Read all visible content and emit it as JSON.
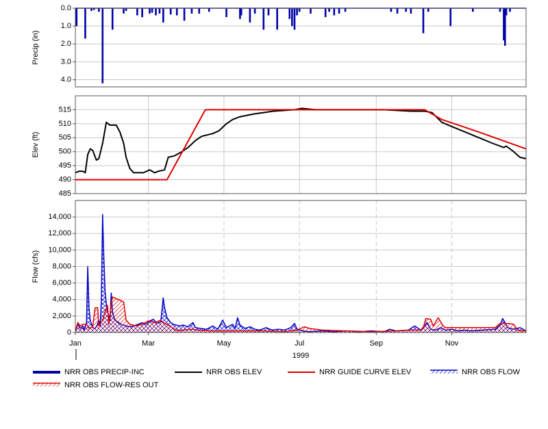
{
  "chart_data": [
    {
      "type": "bar",
      "ylabel": "Precip (in)",
      "xlim": [
        1,
        365
      ],
      "ylim": [
        4.4,
        0
      ],
      "yticks": [
        {
          "value": 0,
          "label": "0.0"
        },
        {
          "value": 1,
          "label": "1.0"
        },
        {
          "value": 2,
          "label": "2.0"
        },
        {
          "value": 3,
          "label": "3.0"
        },
        {
          "value": 4,
          "label": "4.0"
        }
      ],
      "grid": true,
      "x": [
        2,
        9,
        14,
        16,
        20,
        23,
        31,
        40,
        42,
        51,
        55,
        61,
        63,
        66,
        69,
        72,
        78,
        83,
        89,
        95,
        101,
        109,
        123,
        134,
        135,
        142,
        146,
        153,
        157,
        164,
        174,
        176,
        178,
        180,
        182,
        191,
        203,
        206,
        210,
        214,
        219,
        256,
        261,
        268,
        272,
        282,
        286,
        304,
        322,
        344,
        347,
        348,
        349,
        352
      ],
      "series": [
        {
          "name": "NRR OBS PRECIP-INC",
          "color": "#0000a8",
          "values": [
            1.0,
            1.7,
            0.15,
            0.1,
            0.2,
            4.2,
            1.2,
            0.3,
            0.15,
            0.4,
            0.5,
            0.3,
            0.25,
            0.4,
            0.3,
            0.8,
            0.35,
            0.4,
            0.7,
            0.3,
            0.3,
            0.2,
            0.5,
            0.6,
            0.4,
            0.8,
            0.3,
            1.2,
            0.4,
            1.2,
            0.6,
            1.0,
            1.2,
            0.4,
            0.2,
            0.3,
            0.5,
            0.2,
            0.4,
            0.3,
            0.2,
            0.2,
            0.3,
            0.2,
            0.3,
            1.4,
            0.2,
            1.0,
            0.2,
            0.2,
            1.8,
            2.1,
            0.4,
            0.2
          ]
        }
      ]
    },
    {
      "type": "line",
      "ylabel": "Elev (ft)",
      "xlim": [
        1,
        365
      ],
      "ylim": [
        485,
        520
      ],
      "yticks": [
        485,
        490,
        495,
        500,
        505,
        510,
        515
      ],
      "grid": true,
      "series": [
        {
          "name": "NRR OBS ELEV",
          "color": "#000000",
          "x": [
            1,
            4,
            7,
            9,
            11,
            13,
            15,
            18,
            20,
            23,
            26,
            29,
            31,
            34,
            37,
            40,
            42,
            45,
            48,
            51,
            56,
            61,
            65,
            68,
            73,
            76,
            81,
            87,
            92,
            98,
            103,
            112,
            117,
            123,
            128,
            134,
            145,
            161,
            178,
            184,
            195,
            217,
            250,
            272,
            283,
            289,
            297,
            305,
            316,
            327,
            338,
            347,
            349,
            355,
            360,
            365
          ],
          "values": [
            492.5,
            493,
            493,
            492.5,
            499,
            501,
            500.5,
            497,
            497.5,
            503,
            510.5,
            509.5,
            509.5,
            509.5,
            507,
            503,
            498,
            494,
            492.5,
            492.5,
            492.5,
            493.5,
            492.5,
            493,
            493.5,
            498,
            498.5,
            500,
            501.5,
            504,
            505.5,
            506.5,
            507.5,
            510,
            511.5,
            512.5,
            513.5,
            514.5,
            515,
            515.5,
            515,
            515,
            515,
            514.5,
            514.5,
            514,
            510.5,
            509,
            507,
            505,
            503,
            501.5,
            502,
            500,
            498,
            497.5
          ]
        },
        {
          "name": "NRR GUIDE CURVE ELEV",
          "color": "#e00000",
          "x": [
            1,
            75,
            106,
            283,
            297,
            327,
            365
          ],
          "values": [
            490,
            490,
            515,
            515,
            511.5,
            507,
            501
          ]
        }
      ]
    },
    {
      "type": "area",
      "ylabel": "Flow (cfs)",
      "xlabel": "1999",
      "xlim": [
        1,
        365
      ],
      "ylim": [
        0,
        16000
      ],
      "yticks": [
        0,
        {
          "value": 2000,
          "label": "2,000"
        },
        {
          "value": 4000,
          "label": "4,000"
        },
        {
          "value": 6000,
          "label": "6,000"
        },
        {
          "value": 8000,
          "label": "8,000"
        },
        {
          "value": 10000,
          "label": "10,000"
        },
        {
          "value": 12000,
          "label": "12,000"
        },
        {
          "value": 14000,
          "label": "14,000"
        }
      ],
      "xticks": [
        {
          "value": 1,
          "label": "Jan"
        },
        {
          "value": 60,
          "label": "Mar"
        },
        {
          "value": 121,
          "label": "May"
        },
        {
          "value": 182,
          "label": "Jul"
        },
        {
          "value": 244,
          "label": "Sep"
        },
        {
          "value": 305,
          "label": "Nov"
        }
      ],
      "grid": true,
      "series": [
        {
          "name": "NRR OBS FLOW",
          "color": "#0000c8",
          "x": [
            1,
            3,
            5,
            7,
            8,
            10,
            11,
            12,
            13,
            15,
            17,
            19,
            20,
            21,
            22,
            23,
            24,
            25,
            26,
            27,
            29,
            30,
            31,
            33,
            35,
            38,
            42,
            46,
            50,
            55,
            58,
            61,
            64,
            67,
            70,
            72,
            73,
            75,
            78,
            80,
            85,
            88,
            92,
            96,
            98,
            102,
            107,
            112,
            116,
            120,
            123,
            128,
            130,
            132,
            134,
            138,
            142,
            146,
            150,
            155,
            160,
            165,
            170,
            175,
            178,
            180,
            185,
            190,
            200,
            210,
            220,
            230,
            240,
            250,
            255,
            260,
            270,
            275,
            280,
            285,
            288,
            292,
            296,
            300,
            305,
            310,
            315,
            320,
            330,
            340,
            344,
            346,
            348,
            350,
            355,
            360,
            365
          ],
          "values": [
            200,
            1000,
            500,
            800,
            300,
            1200,
            8000,
            3000,
            1500,
            600,
            500,
            1000,
            1500,
            800,
            4000,
            14300,
            9000,
            5000,
            3500,
            2500,
            1500,
            4800,
            2500,
            1500,
            1300,
            1000,
            800,
            700,
            900,
            1200,
            1000,
            1400,
            1600,
            1100,
            1300,
            4200,
            3000,
            1800,
            1200,
            1000,
            800,
            900,
            700,
            1200,
            600,
            500,
            400,
            800,
            400,
            1500,
            600,
            1000,
            500,
            1800,
            900,
            500,
            700,
            400,
            300,
            600,
            300,
            400,
            300,
            600,
            1100,
            400,
            200,
            100,
            200,
            100,
            200,
            100,
            200,
            100,
            400,
            200,
            300,
            800,
            300,
            1200,
            400,
            300,
            600,
            300,
            400,
            200,
            300,
            200,
            300,
            400,
            900,
            1700,
            1200,
            600,
            400,
            600,
            200
          ]
        },
        {
          "name": "NRR OBS FLOW-RES OUT",
          "color": "#e00000",
          "x": [
            1,
            3,
            5,
            7,
            10,
            12,
            15,
            17,
            19,
            20,
            23,
            25,
            27,
            28,
            30,
            31,
            36,
            40,
            42,
            45,
            50,
            55,
            60,
            65,
            70,
            73,
            75,
            78,
            80,
            84,
            88,
            95,
            100,
            110,
            120,
            130,
            140,
            150,
            170,
            180,
            186,
            190,
            200,
            220,
            240,
            260,
            270,
            280,
            282,
            284,
            288,
            290,
            294,
            296,
            298,
            300,
            320,
            340,
            344,
            350,
            355,
            358,
            362,
            365
          ],
          "values": [
            200,
            1200,
            800,
            1000,
            1000,
            500,
            700,
            3000,
            3000,
            800,
            1500,
            2500,
            3300,
            1000,
            3500,
            4300,
            4000,
            3700,
            1500,
            1000,
            800,
            1000,
            1400,
            1200,
            1500,
            1100,
            1000,
            700,
            500,
            200,
            300,
            400,
            300,
            200,
            200,
            200,
            200,
            200,
            100,
            300,
            700,
            500,
            300,
            200,
            100,
            200,
            300,
            300,
            600,
            1700,
            1600,
            800,
            1800,
            1300,
            800,
            600,
            600,
            600,
            1100,
            1100,
            1000,
            300,
            200,
            300
          ]
        }
      ]
    }
  ]
}
